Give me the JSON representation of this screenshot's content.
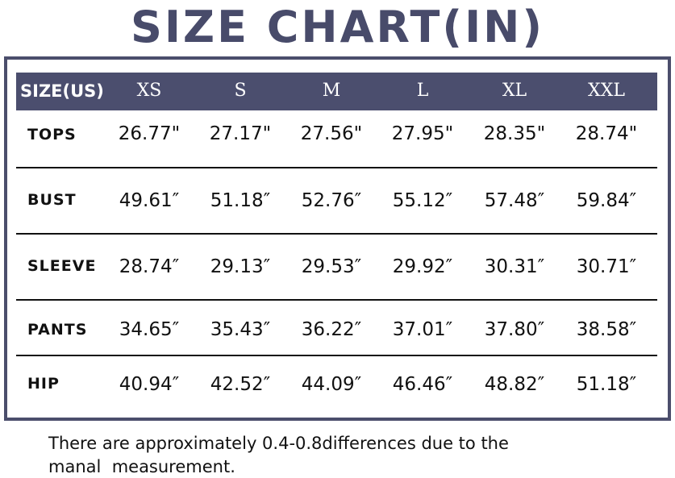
{
  "title": "SIZE CHART(IN)",
  "table": {
    "header": [
      "SIZE(US)",
      "XS",
      "S",
      "M",
      "L",
      "XL",
      "XXL"
    ],
    "rows": [
      [
        "TOPS",
        "26.77\"",
        "27.17\"",
        "27.56\"",
        "27.95\"",
        "28.35\"",
        "28.74\""
      ],
      [
        "BUST",
        "49.61″",
        "51.18″",
        "52.76″",
        "55.12″",
        "57.48″",
        "59.84″"
      ],
      [
        "SLEEVE",
        "28.74″",
        "29.13″",
        "29.53″",
        "29.92″",
        "30.31″",
        "30.71″"
      ],
      [
        "PANTS",
        "34.65″",
        "35.43″",
        "36.22″",
        "37.01″",
        "37.80″",
        "38.58″"
      ],
      [
        "HIP",
        "40.94″",
        "42.52″",
        "44.09″",
        "46.46″",
        "48.82″",
        "51.18″"
      ]
    ]
  },
  "note": [
    "There are approximately 0.4-0.8differences due to the",
    "manal  measurement."
  ]
}
